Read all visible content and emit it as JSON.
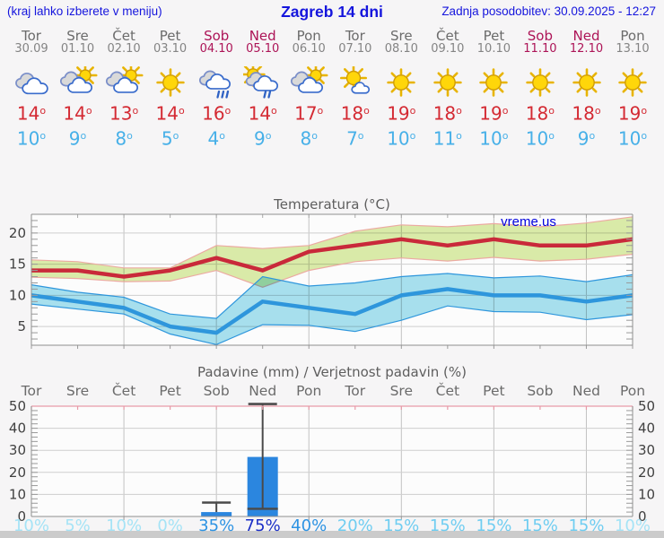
{
  "header": {
    "menu_note": "(kraj lahko izberete v meniju)",
    "title": "Zagreb 14 dni",
    "last_update": "Zadnja posodobitev: 30.09.2025 - 12:27"
  },
  "units": {
    "degree_mark": "o"
  },
  "colors": {
    "header_blue": "#1515dd",
    "weekday": "#6b6b6b",
    "date_gray": "#848484",
    "weekend": "#ad1457",
    "tmax_text": "#d42a33",
    "tmin_text": "#47b0e8",
    "watermark_blue": "#0202dd"
  },
  "days": [
    {
      "name": "Tor",
      "date": "30.09",
      "weekend": false,
      "icon": "cloudy",
      "tmax": "14",
      "tmin": "10"
    },
    {
      "name": "Sre",
      "date": "01.10",
      "weekend": false,
      "icon": "partly-cloudy",
      "tmax": "14",
      "tmin": "9"
    },
    {
      "name": "Čet",
      "date": "02.10",
      "weekend": false,
      "icon": "partly-cloudy",
      "tmax": "13",
      "tmin": "8"
    },
    {
      "name": "Pet",
      "date": "03.10",
      "weekend": false,
      "icon": "sunny",
      "tmax": "14",
      "tmin": "5"
    },
    {
      "name": "Sob",
      "date": "04.10",
      "weekend": true,
      "icon": "rain",
      "tmax": "16",
      "tmin": "4"
    },
    {
      "name": "Ned",
      "date": "05.10",
      "weekend": true,
      "icon": "sun-rain",
      "tmax": "14",
      "tmin": "9"
    },
    {
      "name": "Pon",
      "date": "06.10",
      "weekend": false,
      "icon": "partly-cloudy",
      "tmax": "17",
      "tmin": "8"
    },
    {
      "name": "Tor",
      "date": "07.10",
      "weekend": false,
      "icon": "mostly-sunny",
      "tmax": "18",
      "tmin": "7"
    },
    {
      "name": "Sre",
      "date": "08.10",
      "weekend": false,
      "icon": "sunny",
      "tmax": "19",
      "tmin": "10"
    },
    {
      "name": "Čet",
      "date": "09.10",
      "weekend": false,
      "icon": "sunny",
      "tmax": "18",
      "tmin": "11"
    },
    {
      "name": "Pet",
      "date": "10.10",
      "weekend": false,
      "icon": "sunny",
      "tmax": "19",
      "tmin": "10"
    },
    {
      "name": "Sob",
      "date": "11.10",
      "weekend": true,
      "icon": "sunny",
      "tmax": "18",
      "tmin": "10"
    },
    {
      "name": "Ned",
      "date": "12.10",
      "weekend": true,
      "icon": "sunny",
      "tmax": "18",
      "tmin": "9"
    },
    {
      "name": "Pon",
      "date": "13.10",
      "weekend": false,
      "icon": "sunny",
      "tmax": "19",
      "tmin": "10"
    }
  ],
  "chart_data": [
    {
      "type": "line",
      "title": "Temperatura (°C)",
      "watermark": "vreme.us",
      "x_labels": [
        "Tor",
        "Sre",
        "Čet",
        "Pet",
        "Sob",
        "Ned",
        "Pon",
        "Tor",
        "Sre",
        "Čet",
        "Pet",
        "Sob",
        "Ned",
        "Pon"
      ],
      "ylim": [
        2,
        23
      ],
      "yticks": [
        5,
        10,
        15,
        20
      ],
      "grid_days": [
        2,
        4,
        6,
        8,
        10,
        12
      ],
      "series": [
        {
          "name": "max-temp",
          "line_color": "#c9293a",
          "band_color": "#dcedaa",
          "edge_color": "#ecaaa2",
          "upper": [
            15.7,
            15.4,
            14.4,
            14.4,
            18.0,
            17.5,
            18.0,
            20.3,
            21.3,
            21.0,
            21.5,
            21.0,
            21.6,
            22.6
          ],
          "values": [
            14,
            14,
            13,
            14,
            16,
            14,
            17,
            18,
            19,
            18,
            19,
            18,
            18,
            19
          ],
          "lower": [
            12.9,
            12.7,
            12.2,
            12.3,
            14.0,
            11.3,
            14.0,
            15.4,
            16.0,
            15.5,
            16.1,
            15.5,
            15.8,
            16.6
          ]
        },
        {
          "name": "min-temp",
          "line_color": "#2e96dc",
          "band_color": "#a9e2f0",
          "edge_color": "#2e96dc",
          "upper": [
            11.7,
            10.5,
            9.7,
            7.0,
            6.3,
            13.0,
            11.5,
            12.0,
            13.0,
            13.5,
            12.8,
            13.1,
            12.2,
            13.3
          ],
          "values": [
            10,
            9,
            8,
            5,
            4,
            9,
            8,
            7,
            10,
            11,
            10,
            10,
            9,
            10
          ],
          "lower": [
            8.6,
            7.8,
            7.0,
            3.8,
            2.1,
            5.3,
            5.2,
            4.2,
            6.0,
            8.3,
            7.4,
            7.3,
            6.1,
            6.9
          ]
        }
      ]
    },
    {
      "type": "bar",
      "title": "Padavine (mm) / Verjetnost padavin (%)",
      "x_labels": [
        "Tor",
        "Sre",
        "Čet",
        "Pet",
        "Sob",
        "Ned",
        "Pon",
        "Tor",
        "Sre",
        "Čet",
        "Pet",
        "Sob",
        "Ned",
        "Pon"
      ],
      "weekend_day_indices": [
        4,
        5,
        11,
        12
      ],
      "ylim": [
        0,
        50
      ],
      "yticks": [
        0,
        10,
        20,
        30,
        40,
        50
      ],
      "grid_days": [
        2,
        4,
        6,
        8,
        10,
        12
      ],
      "bar_color": "#2b86df",
      "values": [
        0,
        0,
        0,
        0,
        2,
        27,
        0,
        0,
        0,
        0,
        0,
        0,
        0,
        0
      ],
      "whiskers": [
        {
          "day_index": 4,
          "low": 2,
          "high": 6.3,
          "low_cap": false
        },
        {
          "day_index": 5,
          "low": 3.5,
          "high": 51,
          "low_cap": true
        }
      ],
      "probabilities": [
        "10%",
        "5%",
        "10%",
        "0%",
        "35%",
        "75%",
        "40%",
        "20%",
        "15%",
        "15%",
        "15%",
        "15%",
        "15%",
        "10%"
      ],
      "prob_colors": [
        "#a5e3f6",
        "#a5e3f6",
        "#a5e3f6",
        "#a5e3f6",
        "#2d93e3",
        "#1b2fc6",
        "#2d93e3",
        "#6fcdf1",
        "#6fcdf1",
        "#6fcdf1",
        "#6fcdf1",
        "#6fcdf1",
        "#6fcdf1",
        "#a5e3f6"
      ]
    }
  ]
}
